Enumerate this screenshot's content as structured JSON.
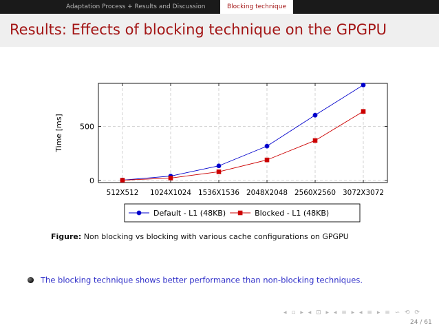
{
  "header": {
    "sections": [
      "Adaptation Process + Results and Discussion",
      "Blocking technique"
    ]
  },
  "title": "Results: Effects of blocking technique on the GPGPU",
  "chart_data": {
    "type": "line",
    "categories": [
      "512X512",
      "1024X1024",
      "1536X1536",
      "2048X2048",
      "2560X2560",
      "3072X3072"
    ],
    "xtick_labels": [
      "512X512",
      "1024X1024",
      "1536X1536",
      "2048X2048",
      "2560X2560",
      "3072X3072"
    ],
    "xlabel": "",
    "ylabel": "Time [ms]",
    "ylim": [
      -20,
      900
    ],
    "yticks": [
      0,
      500
    ],
    "grid": true,
    "legend_position": "bottom",
    "series": [
      {
        "name": "Default - L1 (48KB)",
        "color": "#0000cc",
        "marker": "circle",
        "values": [
          3,
          40,
          135,
          318,
          605,
          885
        ]
      },
      {
        "name": "Blocked - L1 (48KB)",
        "color": "#cc0000",
        "marker": "square",
        "values": [
          2,
          22,
          80,
          190,
          370,
          640
        ]
      }
    ]
  },
  "caption": {
    "label": "Figure:",
    "text": "Non blocking vs blocking with various cache configurations on GPGPU"
  },
  "bullets": [
    "The blocking technique shows better performance than non-blocking techniques."
  ],
  "navigation": {
    "symbols": "◂ ▫ ▸ ◂ ⊡ ▸ ◂ ≡ ▸ ◂ ≡ ▸ ≡ ∽ ⟲ ⟳"
  },
  "page": {
    "current": "24",
    "total": "61"
  }
}
